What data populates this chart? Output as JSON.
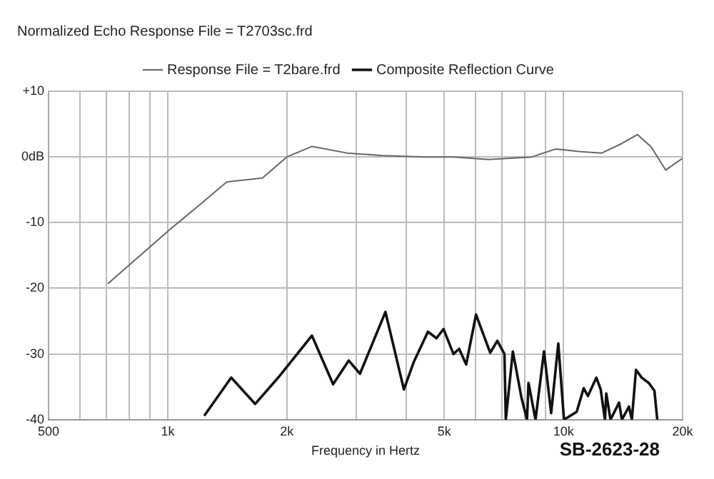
{
  "chart_data": {
    "type": "line",
    "title": "Normalized Echo Response File = T2703sc.frd",
    "xlabel": "Frequency in Hertz",
    "log": "x",
    "grid": true,
    "legend": "top",
    "marker": "none",
    "line_style": "solid",
    "annotations": [
      "SB-2623-28"
    ],
    "xlim": [
      500,
      20000
    ],
    "xticks": [
      {
        "value": 500,
        "label": "500"
      },
      {
        "value": 600,
        "label": null
      },
      {
        "value": 700,
        "label": null
      },
      {
        "value": 800,
        "label": null
      },
      {
        "value": 900,
        "label": null
      },
      {
        "value": 1000,
        "label": "1k"
      },
      {
        "value": 2000,
        "label": "2k"
      },
      {
        "value": 3000,
        "label": null
      },
      {
        "value": 4000,
        "label": null
      },
      {
        "value": 5000,
        "label": "5k"
      },
      {
        "value": 6000,
        "label": null
      },
      {
        "value": 7000,
        "label": null
      },
      {
        "value": 8000,
        "label": null
      },
      {
        "value": 9000,
        "label": null
      },
      {
        "value": 10000,
        "label": "10k"
      },
      {
        "value": 20000,
        "label": "20k"
      }
    ],
    "ylim": [
      -40,
      10
    ],
    "yticks": [
      -40,
      -30,
      -20,
      -10,
      {
        "value": 0,
        "label": "0dB"
      },
      {
        "value": 10,
        "label": "+10"
      }
    ],
    "series": [
      {
        "name": "Response File = T2bare.frd",
        "color": "#666666",
        "x": [
          706,
          1015,
          1193,
          1410,
          1735,
          2000,
          2317,
          2836,
          3488,
          4480,
          5259,
          6478,
          8330,
          9546,
          11045,
          12504,
          14000,
          15380,
          16670,
          18120,
          20000
        ],
        "values": [
          -19.3,
          -11,
          -7.5,
          -3.8,
          -3.2,
          0,
          1.6,
          0.6,
          0.2,
          0,
          0,
          -0.4,
          0,
          1.2,
          0.8,
          0.6,
          2,
          3.4,
          1.5,
          -2,
          -0.2
        ]
      },
      {
        "name": "Composite Reflection Curve",
        "color": "#111111",
        "x": [
          1237,
          1447,
          1664,
          1914,
          2314,
          2618,
          2867,
          3061,
          3550,
          3952,
          4187,
          4546,
          4776,
          4977,
          5273,
          5450,
          5678,
          6013,
          6530,
          6806,
          7094,
          7150,
          7450,
          7830,
          8090,
          8160,
          8500,
          8930,
          9310,
          9705,
          10030,
          10800,
          11250,
          11530,
          12110,
          12420,
          12730,
          12830,
          13150,
          13820,
          14050,
          14640,
          14890,
          15250,
          15770,
          16430,
          16980,
          17260
        ],
        "values": [
          -39.4,
          -33.6,
          -37.6,
          -33.4,
          -27.2,
          -34.6,
          -31,
          -33,
          -23.6,
          -35.4,
          -31.2,
          -26.6,
          -27.6,
          -26.2,
          -30,
          -29.2,
          -31.6,
          -24,
          -29.8,
          -28,
          -30,
          -40,
          -29.6,
          -36.6,
          -40,
          -34.4,
          -40,
          -29.6,
          -39,
          -28.4,
          -40,
          -38.8,
          -35.2,
          -36.4,
          -33.6,
          -35.4,
          -40,
          -36,
          -40,
          -37.4,
          -40,
          -38,
          -40,
          -32.4,
          -33.6,
          -34.4,
          -35.6,
          -40
        ]
      }
    ]
  }
}
